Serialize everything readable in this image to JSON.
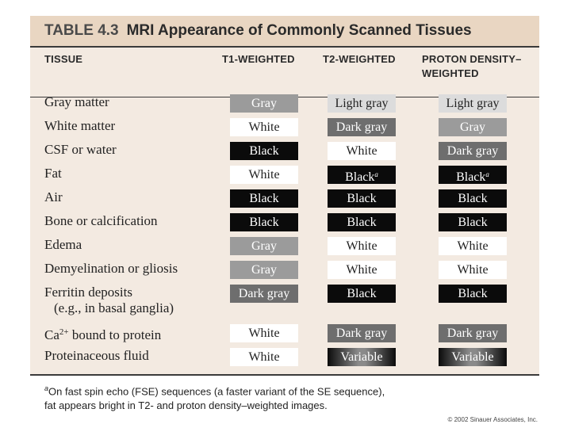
{
  "table": {
    "number": "TABLE 4.3",
    "title": "MRI Appearance of Commonly Scanned Tissues",
    "headers": {
      "tissue": "TISSUE",
      "t1": "T1-WEIGHTED",
      "t2": "T2-WEIGHTED",
      "pd_line1": "PROTON DENSITY–",
      "pd_line2": "WEIGHTED"
    },
    "shade_colors": {
      "Gray": "#9b9b9b",
      "White": "#ffffff",
      "Black": "#0b0b0b",
      "Light gray": "#dcdcdc",
      "Dark gray": "#6e6e6e",
      "Variable": "gradient"
    },
    "rows": [
      {
        "tissue": "Gray matter",
        "t1": "Gray",
        "t2": "Light gray",
        "pd": "Light gray"
      },
      {
        "tissue": "White matter",
        "t1": "White",
        "t2": "Dark gray",
        "pd": "Gray"
      },
      {
        "tissue": "CSF or water",
        "t1": "Black",
        "t2": "White",
        "pd": "Dark gray"
      },
      {
        "tissue": "Fat",
        "t1": "White",
        "t2": "Black",
        "t2_note": "a",
        "pd": "Black",
        "pd_note": "a"
      },
      {
        "tissue": "Air",
        "t1": "Black",
        "t2": "Black",
        "pd": "Black"
      },
      {
        "tissue": "Bone or calcification",
        "t1": "Black",
        "t2": "Black",
        "pd": "Black"
      },
      {
        "tissue": "Edema",
        "t1": "Gray",
        "t2": "White",
        "pd": "White"
      },
      {
        "tissue": "Demyelination or gliosis",
        "t1": "Gray",
        "t2": "White",
        "pd": "White"
      },
      {
        "tissue": "Ferritin deposits",
        "tissue_line2": "(e.g., in basal ganglia)",
        "t1": "Dark gray",
        "t2": "Black",
        "pd": "Black"
      },
      {
        "tissue": "Ca",
        "tissue_sup": "2+",
        "tissue_after": " bound to protein",
        "t1": "White",
        "t2": "Dark gray",
        "pd": "Dark gray"
      },
      {
        "tissue": "Proteinaceous fluid",
        "t1": "White",
        "t2": "Variable",
        "pd": "Variable"
      }
    ]
  },
  "footnote": {
    "marker": "a",
    "line1": "On fast spin echo (FSE) sequences (a faster variant of the SE sequence),",
    "line2": "fat appears bright in T2- and proton density–weighted images."
  },
  "copyright": "© 2002 Sinauer Associates, Inc."
}
